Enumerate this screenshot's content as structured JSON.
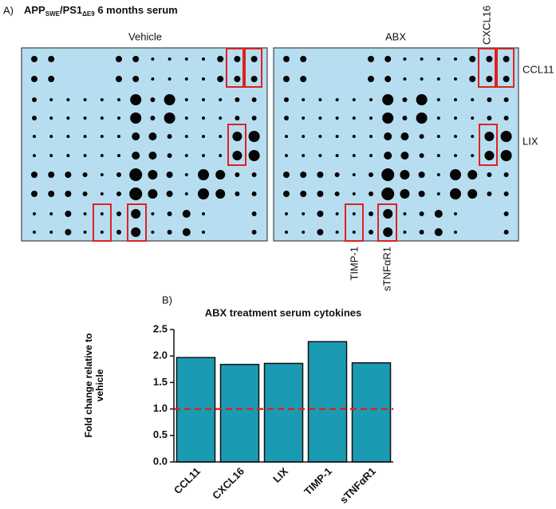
{
  "panel_a": {
    "label": "A)",
    "title": [
      "APP",
      "SWE",
      "/PS1",
      "ΔE9",
      " 6 months serum"
    ],
    "blots": [
      "Vehicle",
      "ABX"
    ],
    "spot_labels": {
      "cxcl16": "CXCL16",
      "ccl11": "CCL11",
      "lix": "LIX",
      "timp1": "TIMP-1",
      "stnfar1": "sTNFαR1"
    }
  },
  "chart_data": {
    "type": "bar",
    "panel_label": "B)",
    "title": "ABX treatment serum cytokines",
    "y_label": "Fold change relative to vehicle",
    "categories": [
      "CCL11",
      "CXCL16",
      "LIX",
      "TIMP-1",
      "sTNFαR1"
    ],
    "values": [
      1.97,
      1.84,
      1.86,
      2.27,
      1.87
    ],
    "color": "#1a9bb3",
    "ylim": [
      0,
      2.5
    ],
    "yticks": [
      {
        "value": 0,
        "label": "0.0"
      },
      {
        "value": 0.5,
        "label": "0.5"
      },
      {
        "value": 1,
        "label": "1.0"
      },
      {
        "value": 1.5,
        "label": "1.5"
      },
      {
        "value": 2,
        "label": "2.0"
      },
      {
        "value": 2.5,
        "label": "2.5"
      }
    ],
    "reference_line": 1,
    "reference_color": "#e02020"
  }
}
